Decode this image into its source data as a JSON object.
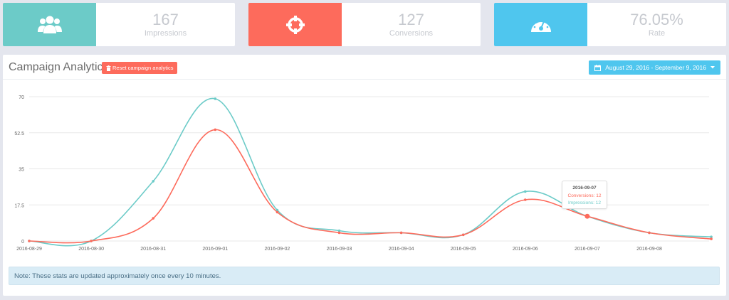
{
  "stats": [
    {
      "value": "167",
      "label": "Impressions",
      "icon": "users-icon",
      "color": "#6ccbc8"
    },
    {
      "value": "127",
      "label": "Conversions",
      "icon": "crosshair-icon",
      "color": "#fd6b5c"
    },
    {
      "value": "76.05%",
      "label": "Rate",
      "icon": "gauge-icon",
      "color": "#4fc6ee"
    }
  ],
  "panel": {
    "title": "Campaign Analytics",
    "reset_label": "Reset campaign analytics",
    "date_range": "August 29, 2016 - September 9, 2016"
  },
  "tooltip": {
    "date": "2016-09-07",
    "conversions": "Conversions: 12",
    "impressions": "Impressions: 12"
  },
  "note": "Note: These stats are updated approximately once every 10 minutes.",
  "colors": {
    "impressions": "#6ccbc8",
    "conversions": "#fd6b5c"
  },
  "chart_data": {
    "type": "line",
    "x": [
      "2016-08-29",
      "2016-08-30",
      "2016-08-31",
      "2016-09-01",
      "2016-09-02",
      "2016-09-03",
      "2016-09-04",
      "2016-09-05",
      "2016-09-06",
      "2016-09-07",
      "2016-09-08",
      "2016-09-09"
    ],
    "xtick_labels": [
      "2016-08-29",
      "2016-08-30",
      "2016-08-31",
      "2016-09-01",
      "2016-09-02",
      "2016-09-03",
      "2016-09-04",
      "2016-09-05",
      "2016-09-06",
      "2016-09-07",
      "2016-09-08"
    ],
    "yticks": [
      "0",
      "17.5",
      "35",
      "52.5",
      "70"
    ],
    "ylim": [
      0,
      70
    ],
    "grid": true,
    "series": [
      {
        "name": "Impressions",
        "values": [
          0,
          0,
          29,
          69,
          15,
          5,
          4,
          3,
          24,
          12,
          4,
          2
        ]
      },
      {
        "name": "Conversions",
        "values": [
          0,
          0,
          11,
          54,
          14,
          4,
          4,
          3,
          20,
          12,
          4,
          1
        ]
      }
    ]
  }
}
